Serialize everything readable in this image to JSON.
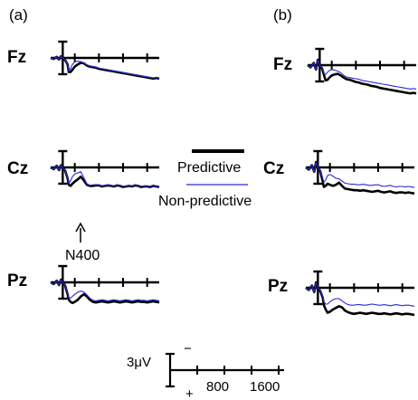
{
  "chart_data": {
    "type": "line",
    "title": "",
    "panels": [
      "(a)",
      "(b)"
    ],
    "electrodes": [
      "Fz",
      "Cz",
      "Pz"
    ],
    "legend": {
      "predictive": "Predictive",
      "non_predictive": "Non-predictive"
    },
    "annotation": "N400",
    "scale": {
      "amplitude": "3μV",
      "negative": "−",
      "positive": "+",
      "ticks": [
        "800",
        "1600"
      ]
    },
    "xlim": [
      -200,
      1600
    ],
    "ylim_uV": [
      -3,
      3
    ],
    "negative_up": true,
    "x": [
      -200,
      -150,
      -100,
      -60,
      -30,
      0,
      40,
      80,
      100,
      130,
      160,
      200,
      250,
      300,
      350,
      400,
      450,
      500,
      550,
      600,
      650,
      700,
      750,
      800,
      850,
      900,
      950,
      1000,
      1050,
      1100,
      1150,
      1200,
      1250,
      1300,
      1350,
      1400,
      1450,
      1500,
      1550,
      1600
    ],
    "series": [
      {
        "name": "Predictive",
        "panel": "(a)",
        "electrode": "Fz",
        "values": [
          0,
          0.2,
          -0.2,
          0.3,
          -0.3,
          0,
          0.4,
          1.2,
          2.6,
          2.6,
          2.2,
          1.6,
          1.2,
          0.9,
          1.0,
          1.4,
          1.6,
          1.7,
          1.8,
          2.0,
          2.1,
          2.2,
          2.3,
          2.4,
          2.5,
          2.6,
          2.7,
          2.8,
          2.9,
          3.0,
          3.1,
          3.2,
          3.3,
          3.4,
          3.5,
          3.6,
          3.7,
          3.8,
          3.7,
          3.8
        ]
      },
      {
        "name": "Non-predictive",
        "panel": "(a)",
        "electrode": "Fz",
        "values": [
          0,
          0.2,
          -0.2,
          0.3,
          -0.3,
          0,
          0.4,
          1.2,
          2.4,
          2.0,
          1.2,
          0.7,
          0.6,
          0.7,
          0.9,
          1.3,
          1.5,
          1.6,
          1.7,
          1.9,
          2.0,
          2.1,
          2.2,
          2.3,
          2.4,
          2.5,
          2.6,
          2.7,
          2.8,
          2.9,
          3.0,
          3.1,
          3.2,
          3.3,
          3.4,
          3.5,
          3.6,
          3.7,
          3.6,
          3.7
        ]
      },
      {
        "name": "Predictive",
        "panel": "(a)",
        "electrode": "Cz",
        "values": [
          0,
          0.3,
          -0.3,
          0.5,
          -0.4,
          0,
          0.6,
          2.0,
          3.2,
          3.4,
          3.0,
          2.6,
          2.2,
          1.7,
          2.4,
          3.2,
          3.4,
          3.4,
          3.3,
          3.3,
          3.5,
          3.4,
          3.3,
          3.4,
          3.5,
          3.3,
          3.4,
          3.6,
          3.5,
          3.4,
          3.5,
          3.3,
          3.4,
          3.6,
          3.5,
          3.5,
          3.6,
          3.4,
          3.5,
          3.6
        ]
      },
      {
        "name": "Non-predictive",
        "panel": "(a)",
        "electrode": "Cz",
        "values": [
          0,
          0.3,
          -0.3,
          0.5,
          -0.4,
          0,
          0.6,
          1.9,
          2.9,
          2.5,
          1.7,
          1.2,
          1.0,
          0.8,
          1.9,
          3.0,
          3.3,
          3.2,
          3.2,
          3.2,
          3.4,
          3.3,
          3.2,
          3.3,
          3.4,
          3.2,
          3.3,
          3.5,
          3.4,
          3.3,
          3.4,
          3.2,
          3.3,
          3.5,
          3.4,
          3.4,
          3.5,
          3.3,
          3.4,
          3.5
        ]
      },
      {
        "name": "Predictive",
        "panel": "(a)",
        "electrode": "Pz",
        "values": [
          0,
          0.3,
          -0.3,
          0.5,
          -0.5,
          0,
          0.6,
          2.2,
          3.2,
          3.6,
          3.8,
          3.6,
          3.2,
          2.6,
          2.2,
          2.6,
          3.2,
          3.6,
          3.7,
          3.6,
          3.5,
          3.6,
          3.7,
          3.6,
          3.5,
          3.6,
          3.7,
          3.6,
          3.5,
          3.6,
          3.7,
          3.6,
          3.5,
          3.6,
          3.6,
          3.7,
          3.6,
          3.5,
          3.6,
          3.7
        ]
      },
      {
        "name": "Non-predictive",
        "panel": "(a)",
        "electrode": "Pz",
        "values": [
          0,
          0.3,
          -0.3,
          0.5,
          -0.5,
          0,
          0.6,
          2.0,
          2.8,
          2.9,
          2.6,
          2.2,
          1.8,
          1.6,
          1.8,
          2.3,
          2.9,
          3.3,
          3.4,
          3.3,
          3.2,
          3.3,
          3.4,
          3.3,
          3.2,
          3.3,
          3.4,
          3.3,
          3.2,
          3.3,
          3.4,
          3.3,
          3.2,
          3.3,
          3.3,
          3.4,
          3.3,
          3.2,
          3.3,
          3.4
        ]
      },
      {
        "name": "Predictive",
        "panel": "(b)",
        "electrode": "Fz",
        "values": [
          0,
          0.4,
          -0.4,
          0.8,
          -1.0,
          0,
          0.6,
          2.2,
          2.8,
          2.7,
          2.3,
          1.9,
          1.7,
          1.6,
          1.9,
          2.3,
          2.6,
          2.7,
          2.9,
          3.1,
          3.2,
          3.4,
          3.5,
          3.6,
          3.8,
          3.9,
          4.0,
          4.2,
          4.3,
          4.4,
          4.5,
          4.6,
          4.7,
          4.8,
          4.9,
          5.0,
          5.1,
          5.2,
          5.1,
          5.2
        ]
      },
      {
        "name": "Non-predictive",
        "panel": "(b)",
        "electrode": "Fz",
        "values": [
          0,
          0.4,
          -0.4,
          0.8,
          -1.0,
          0,
          0.5,
          1.6,
          1.7,
          1.3,
          1.0,
          0.8,
          0.9,
          1.1,
          1.4,
          1.9,
          2.2,
          2.3,
          2.4,
          2.5,
          2.6,
          2.8,
          2.9,
          3.0,
          3.1,
          3.2,
          3.3,
          3.4,
          3.5,
          3.6,
          3.7,
          3.8,
          3.9,
          4.0,
          4.1,
          4.2,
          4.3,
          4.4,
          4.3,
          4.4
        ]
      },
      {
        "name": "Predictive",
        "panel": "(b)",
        "electrode": "Cz",
        "values": [
          0,
          0.4,
          -0.4,
          0.8,
          -1.0,
          0,
          0.7,
          2.6,
          3.6,
          3.4,
          3.0,
          3.2,
          3.4,
          3.2,
          2.8,
          3.4,
          3.9,
          4.0,
          4.1,
          4.2,
          4.2,
          4.3,
          4.2,
          4.3,
          4.4,
          4.5,
          4.4,
          4.3,
          4.5,
          4.6,
          4.5,
          4.4,
          4.6,
          4.7,
          4.6,
          4.6,
          4.7,
          4.6,
          4.7,
          4.8
        ]
      },
      {
        "name": "Non-predictive",
        "panel": "(b)",
        "electrode": "Cz",
        "values": [
          0,
          0.4,
          -0.4,
          0.8,
          -1.0,
          0,
          0.6,
          2.0,
          2.7,
          2.3,
          1.5,
          1.3,
          1.6,
          2.0,
          2.1,
          2.5,
          2.9,
          3.0,
          3.1,
          3.1,
          3.2,
          3.2,
          3.1,
          3.2,
          3.3,
          3.3,
          3.2,
          3.2,
          3.4,
          3.5,
          3.4,
          3.3,
          3.5,
          3.6,
          3.5,
          3.5,
          3.6,
          3.5,
          3.6,
          3.7
        ]
      },
      {
        "name": "Predictive",
        "panel": "(b)",
        "electrode": "Pz",
        "values": [
          0,
          0.4,
          -0.4,
          0.8,
          -1.0,
          0,
          0.6,
          1.8,
          3.2,
          4.0,
          4.6,
          4.4,
          4.0,
          3.7,
          3.4,
          3.6,
          4.2,
          4.5,
          4.7,
          4.8,
          4.7,
          4.6,
          4.7,
          4.8,
          4.7,
          4.6,
          4.7,
          4.8,
          4.8,
          4.7,
          4.8,
          4.9,
          4.8,
          4.7,
          4.8,
          4.9,
          4.8,
          4.8,
          4.9,
          5.0
        ]
      },
      {
        "name": "Non-predictive",
        "panel": "(b)",
        "electrode": "Pz",
        "values": [
          0,
          0.4,
          -0.4,
          0.8,
          -1.0,
          0,
          0.5,
          1.5,
          2.6,
          3.0,
          3.0,
          2.6,
          2.2,
          2.0,
          2.0,
          2.4,
          2.8,
          3.1,
          3.2,
          3.2,
          3.1,
          3.1,
          3.2,
          3.2,
          3.1,
          3.0,
          3.1,
          3.2,
          3.2,
          3.1,
          3.2,
          3.3,
          3.2,
          3.1,
          3.2,
          3.3,
          3.2,
          3.2,
          3.3,
          3.4
        ]
      }
    ],
    "colors": {
      "predictive": "#000000",
      "non_predictive": "#2b2bd6"
    },
    "grid": false,
    "legend_position": "center"
  }
}
